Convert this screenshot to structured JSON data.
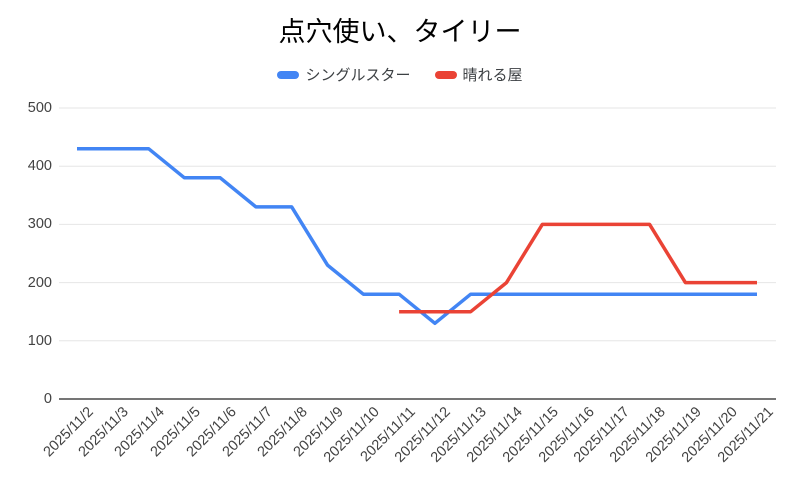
{
  "chart_data": {
    "type": "line",
    "title": "点穴使い、タイリー",
    "x": [
      "2025/11/2",
      "2025/11/3",
      "2025/11/4",
      "2025/11/5",
      "2025/11/6",
      "2025/11/7",
      "2025/11/8",
      "2025/11/9",
      "2025/11/10",
      "2025/11/11",
      "2025/11/12",
      "2025/11/13",
      "2025/11/14",
      "2025/11/15",
      "2025/11/16",
      "2025/11/17",
      "2025/11/18",
      "2025/11/19",
      "2025/11/20",
      "2025/11/21"
    ],
    "series": [
      {
        "name": "シングルスター",
        "color": "#4285F4",
        "values": [
          430,
          430,
          430,
          380,
          380,
          330,
          330,
          230,
          180,
          180,
          130,
          180,
          180,
          180,
          180,
          180,
          180,
          180,
          180,
          180
        ]
      },
      {
        "name": "晴れる屋",
        "color": "#EA4335",
        "values": [
          null,
          null,
          null,
          null,
          null,
          null,
          null,
          null,
          null,
          150,
          150,
          150,
          200,
          300,
          300,
          300,
          300,
          200,
          200,
          200
        ]
      }
    ],
    "ylim": [
      0,
      500
    ],
    "yticks": [
      0,
      100,
      200,
      300,
      400,
      500
    ],
    "xlabel": "",
    "ylabel": "",
    "grid": true,
    "legend_position": "top",
    "x_tick_rotation": -45,
    "colors": {
      "background": "#ffffff",
      "gridline": "#e6e6e6",
      "baseline": "#757575",
      "axis_label": "#424242",
      "title": "#000000"
    }
  }
}
